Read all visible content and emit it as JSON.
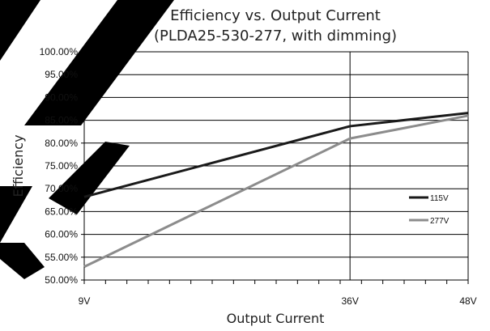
{
  "chart_data": {
    "type": "line",
    "title": "Efficiency vs. Output Current",
    "subtitle": "(PLDA25-530-277, with dimming)",
    "xlabel": "Output Current",
    "ylabel": "Efficiency",
    "x_categories": [
      "9V",
      "36V",
      "48V"
    ],
    "x": [
      9,
      36,
      48
    ],
    "xlim": [
      9,
      48
    ],
    "ylim": [
      50,
      100
    ],
    "y_ticks": [
      "100.00%",
      "95.00%",
      "90.00%",
      "85.00%",
      "80.00%",
      "75.00%",
      "70.00%",
      "65.00%",
      "60.00%",
      "55.00%",
      "50.00%"
    ],
    "grid": "horizontal and vertical at 36V",
    "legend_position": "right, inside",
    "series": [
      {
        "name": "115V",
        "color": "#1a1a1a",
        "values": [
          68.2,
          83.7,
          86.6
        ]
      },
      {
        "name": "277V",
        "color": "#8c8c8c",
        "values": [
          52.9,
          81.0,
          86.0
        ]
      }
    ]
  }
}
